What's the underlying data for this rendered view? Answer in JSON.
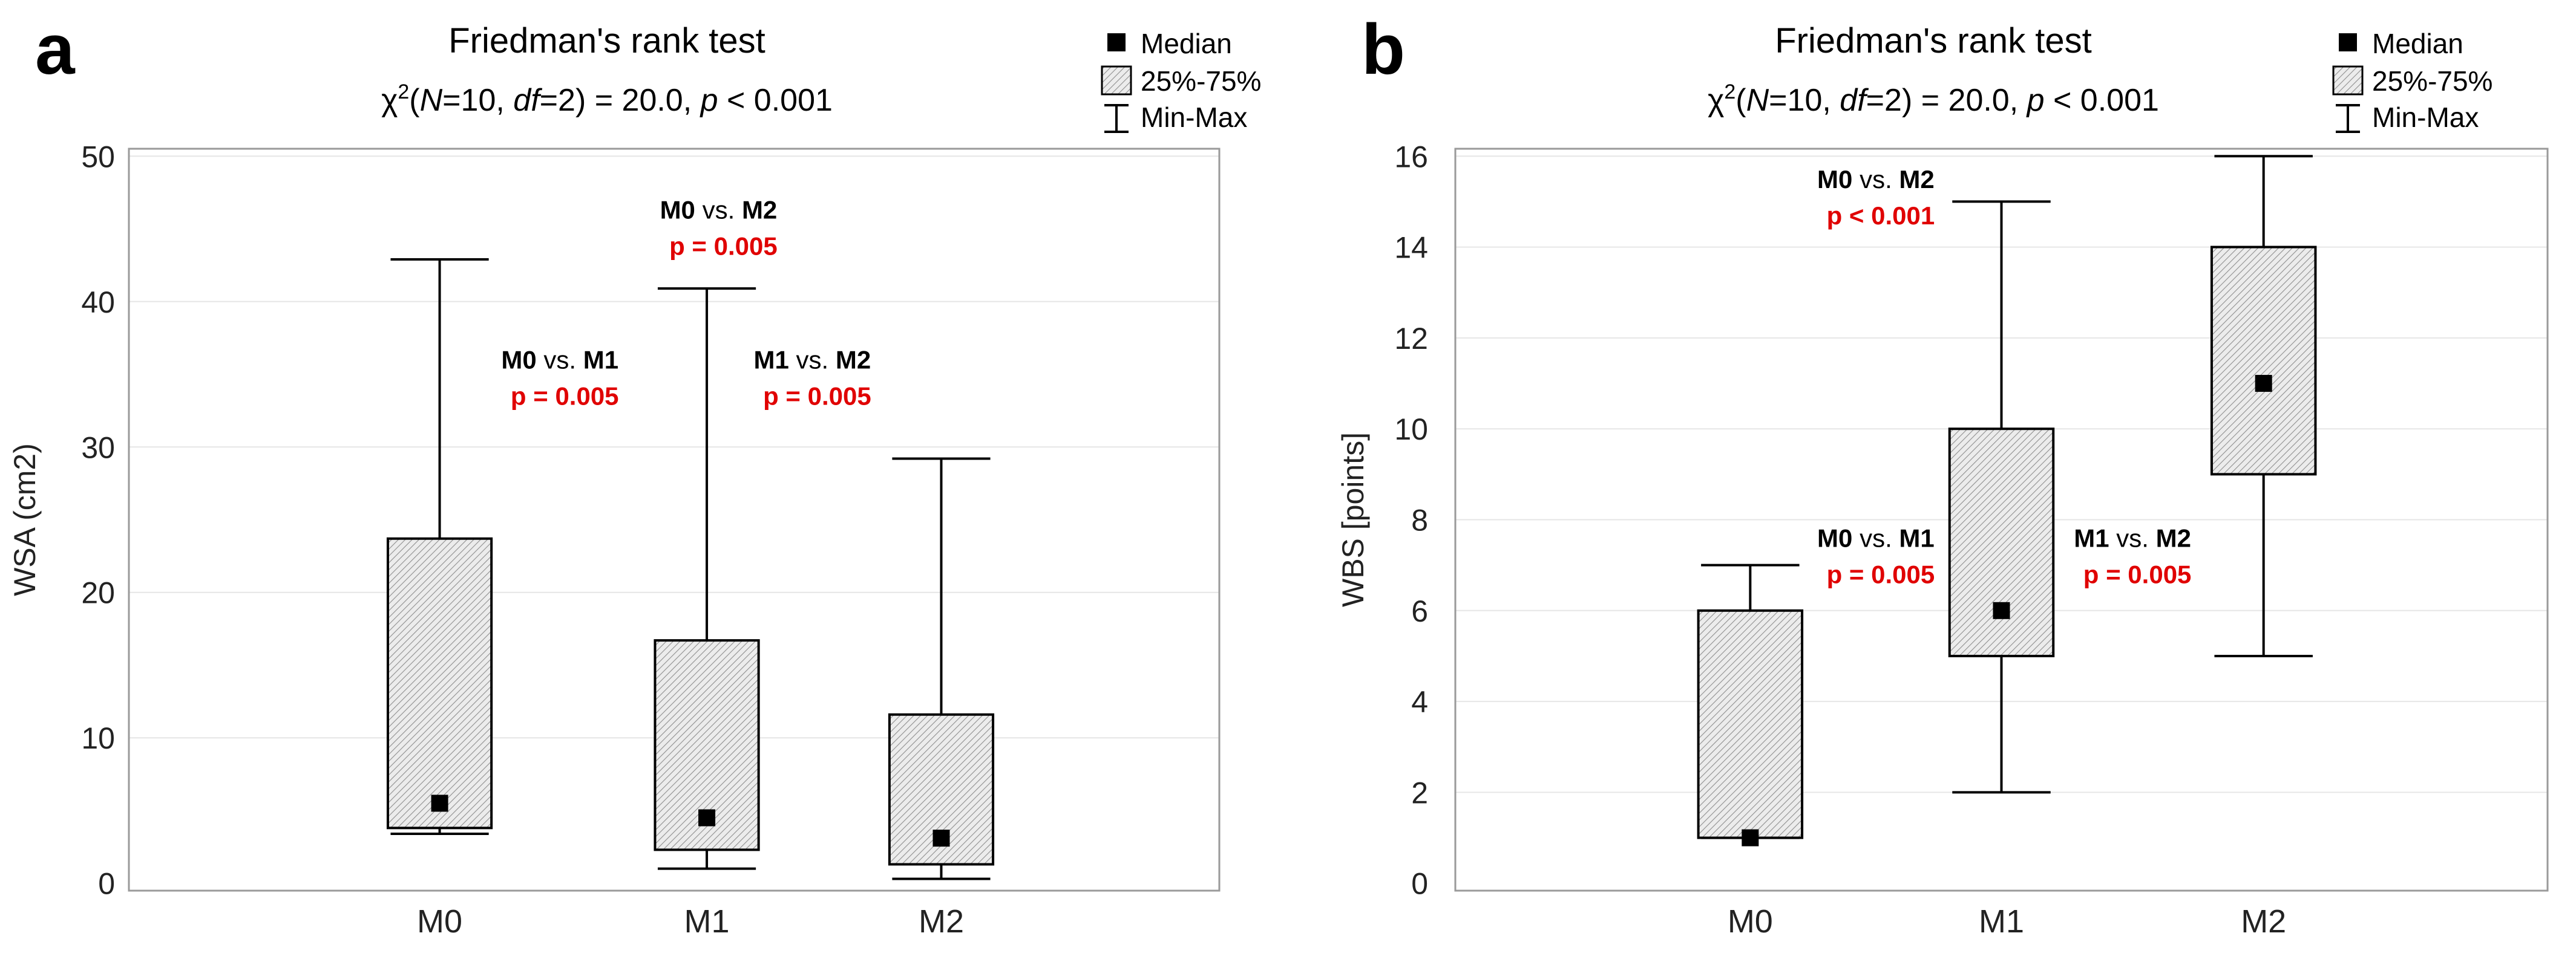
{
  "colors": {
    "box_fill": "#ececec",
    "hatch": "#8f8f8f",
    "stroke": "#000000",
    "grid": "#e6e6e6",
    "pvalue": "#e00000",
    "axis_text": "#222222"
  },
  "chart_data": [
    {
      "type": "box",
      "panel_label": "a",
      "title": "Friedman's rank test",
      "subtitle": {
        "chi": "χ",
        "sup": "2",
        "open": "(",
        "N": "N",
        "n_eq": "=10, ",
        "df": "df",
        "df_eq": "=2) = 20.0,  ",
        "p": "p",
        "p_rest": " < 0.001"
      },
      "ylabel": "WSA (cm2)",
      "ylim": [
        0,
        50
      ],
      "yticks": [
        0,
        10,
        20,
        30,
        40,
        50
      ],
      "tick_labels": [
        "0",
        "10",
        "20",
        "30",
        "40",
        "50"
      ],
      "grid": true,
      "legend": {
        "position": "top-right",
        "median": "Median",
        "box": "25%-75%",
        "whisker": "Min-Max"
      },
      "categories": [
        "M0",
        "M1",
        "M2"
      ],
      "boxes": [
        {
          "category": "M0",
          "min": 3.4,
          "q1": 3.8,
          "median": 5.5,
          "q3": 23.7,
          "max": 42.9
        },
        {
          "category": "M1",
          "min": 1.0,
          "q1": 2.3,
          "median": 4.5,
          "q3": 16.7,
          "max": 40.9
        },
        {
          "category": "M2",
          "min": 0.3,
          "q1": 1.3,
          "median": 3.1,
          "q3": 11.6,
          "max": 29.2
        }
      ],
      "annotations": [
        {
          "a": "M0",
          "vs": " vs. ",
          "b": "M2",
          "p": "p = 0.005",
          "anchor_category": 1.05,
          "y_value": 45.7
        },
        {
          "a": "M0",
          "vs": " vs. ",
          "b": "M1",
          "p": "p = 0.005",
          "anchor_category": 0.45,
          "y_value": 35.4
        },
        {
          "a": "M1",
          "vs": " vs. ",
          "b": "M2",
          "p": "p = 0.005",
          "anchor_category": 1.45,
          "y_value": 35.4
        }
      ]
    },
    {
      "type": "box",
      "panel_label": "b",
      "title": "Friedman's rank test",
      "subtitle": {
        "chi": "χ",
        "sup": "2",
        "open": "(",
        "N": "N",
        "n_eq": "=10, ",
        "df": "df",
        "df_eq": "=2) = 20.0,  ",
        "p": "p",
        "p_rest": " < 0.001"
      },
      "ylabel": "WBS [points]",
      "ylim": [
        0,
        16
      ],
      "yticks": [
        0,
        2,
        4,
        6,
        8,
        10,
        12,
        14,
        16
      ],
      "tick_labels": [
        "0",
        "2",
        "4",
        "6",
        "8",
        "10",
        "12",
        "14",
        "16"
      ],
      "grid": true,
      "legend": {
        "position": "top-right",
        "median": "Median",
        "box": "25%-75%",
        "whisker": "Min-Max"
      },
      "categories": [
        "M0",
        "M1",
        "M2"
      ],
      "boxes": [
        {
          "category": "M0",
          "min": 1,
          "q1": 1,
          "median": 1,
          "q3": 6,
          "max": 7
        },
        {
          "category": "M1",
          "min": 2,
          "q1": 5,
          "median": 6,
          "q3": 10,
          "max": 15
        },
        {
          "category": "M2",
          "min": 5,
          "q1": 9,
          "median": 11,
          "q3": 14,
          "max": 16
        }
      ],
      "annotations": [
        {
          "a": "M0",
          "vs": " vs. ",
          "b": "M2",
          "p": "p < 0.001",
          "anchor_category": 0.5,
          "y_value": 15.3
        },
        {
          "a": "M0",
          "vs": " vs. ",
          "b": "M1",
          "p": "p = 0.005",
          "anchor_category": 0.5,
          "y_value": 7.4
        },
        {
          "a": "M1",
          "vs": " vs. ",
          "b": "M2",
          "p": "p = 0.005",
          "anchor_category": 1.5,
          "y_value": 7.4
        }
      ]
    }
  ]
}
